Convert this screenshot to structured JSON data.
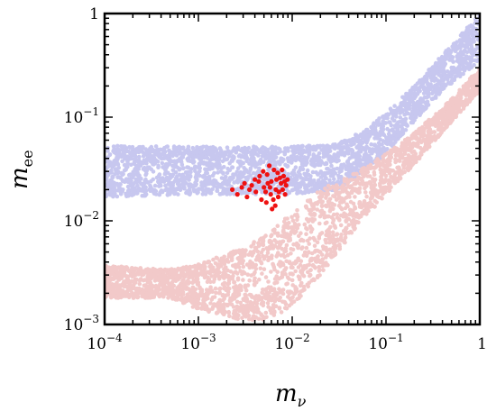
{
  "chart_data": {
    "type": "scatter",
    "x_scale": "log",
    "y_scale": "log",
    "xlim": [
      0.0001,
      1
    ],
    "ylim": [
      0.001,
      1
    ],
    "grid": false,
    "legend": "none",
    "xlabel": {
      "base": "m",
      "sub": "ν"
    },
    "ylabel": {
      "base": "m",
      "sub": "ee"
    },
    "x_ticks": [
      {
        "value": 0.0001,
        "base": "10",
        "exp": "−4"
      },
      {
        "value": 0.001,
        "base": "10",
        "exp": "−3"
      },
      {
        "value": 0.01,
        "base": "10",
        "exp": "−2"
      },
      {
        "value": 0.1,
        "base": "10",
        "exp": "−1"
      },
      {
        "value": 1,
        "base": "1",
        "exp": ""
      }
    ],
    "y_ticks": [
      {
        "value": 0.001,
        "base": "10",
        "exp": "−3"
      },
      {
        "value": 0.01,
        "base": "10",
        "exp": "−2"
      },
      {
        "value": 0.1,
        "base": "10",
        "exp": "−1"
      },
      {
        "value": 1,
        "base": "1",
        "exp": ""
      }
    ],
    "series": [
      {
        "color": "#c7c7ef",
        "region": {
          "x": [
            0.0001,
            0.001,
            0.01,
            0.03,
            0.06,
            0.1,
            0.2,
            0.4,
            1
          ],
          "y_low": [
            0.017,
            0.018,
            0.018,
            0.02,
            0.03,
            0.045,
            0.09,
            0.18,
            0.35
          ],
          "y_high": [
            0.053,
            0.052,
            0.052,
            0.055,
            0.075,
            0.11,
            0.2,
            0.4,
            1.0
          ]
        }
      },
      {
        "color": "#f2c9c9",
        "region": {
          "x": [
            0.0001,
            0.0005,
            0.001,
            0.003,
            0.006,
            0.01,
            0.02,
            0.05,
            0.1,
            0.2,
            0.5,
            1
          ],
          "y_low": [
            0.0018,
            0.0018,
            0.0014,
            0.0011,
            0.0011,
            0.0015,
            0.003,
            0.009,
            0.018,
            0.035,
            0.09,
            0.18
          ],
          "y_high": [
            0.0037,
            0.0034,
            0.0038,
            0.0055,
            0.008,
            0.012,
            0.02,
            0.03,
            0.045,
            0.07,
            0.15,
            0.3
          ]
        }
      },
      {
        "color": "#ee1111",
        "points": [
          [
            0.0054,
            0.028
          ],
          [
            0.0058,
            0.021
          ],
          [
            0.0063,
            0.016
          ],
          [
            0.0068,
            0.025
          ],
          [
            0.0072,
            0.019
          ],
          [
            0.0076,
            0.023
          ],
          [
            0.0049,
            0.03
          ],
          [
            0.0044,
            0.024
          ],
          [
            0.0041,
            0.019
          ],
          [
            0.0037,
            0.022
          ],
          [
            0.0033,
            0.017
          ],
          [
            0.0029,
            0.021
          ],
          [
            0.0026,
            0.018
          ],
          [
            0.0023,
            0.02
          ],
          [
            0.0081,
            0.027
          ],
          [
            0.0086,
            0.022
          ],
          [
            0.0084,
            0.018
          ],
          [
            0.0066,
            0.014
          ],
          [
            0.0061,
            0.013
          ],
          [
            0.0057,
            0.034
          ],
          [
            0.0052,
            0.019
          ],
          [
            0.0047,
            0.016
          ],
          [
            0.0064,
            0.031
          ],
          [
            0.007,
            0.029
          ],
          [
            0.0078,
            0.031
          ],
          [
            0.0089,
            0.025
          ],
          [
            0.006,
            0.024
          ],
          [
            0.0055,
            0.023
          ],
          [
            0.0067,
            0.02
          ],
          [
            0.0071,
            0.017
          ],
          [
            0.005,
            0.021
          ],
          [
            0.0045,
            0.027
          ],
          [
            0.004,
            0.025
          ],
          [
            0.0035,
            0.02
          ],
          [
            0.0031,
            0.023
          ],
          [
            0.0074,
            0.026
          ],
          [
            0.0079,
            0.02
          ],
          [
            0.0083,
            0.024
          ],
          [
            0.0059,
            0.018
          ],
          [
            0.0053,
            0.015
          ]
        ]
      }
    ]
  }
}
